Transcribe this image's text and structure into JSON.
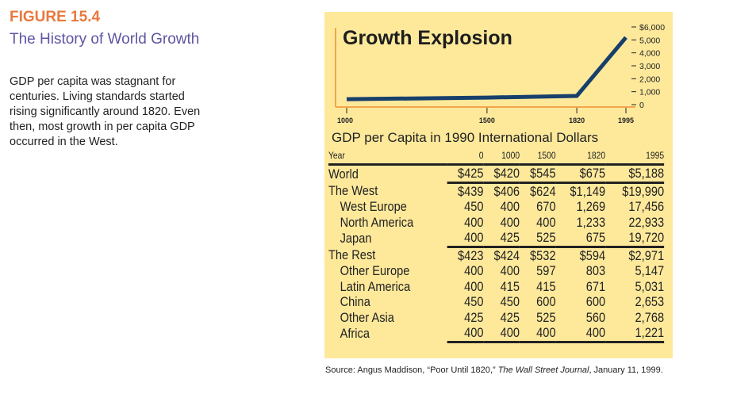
{
  "figure": {
    "label": "FIGURE 15.4",
    "title": "The History of World Growth",
    "caption": "GDP per capita was stagnant for centuries. Living standards started rising significantly around 1820. Even then, most growth in per capita GDP occurred in the West."
  },
  "chart_data": {
    "type": "line",
    "title": "Growth Explosion",
    "x": [
      1000,
      1500,
      1820,
      1995
    ],
    "values": [
      420,
      545,
      675,
      5188
    ],
    "xticks": [
      "1000",
      "1500",
      "1820",
      "1995"
    ],
    "yticks": [
      "0",
      "1,000",
      "2,000",
      "3,000",
      "4,000",
      "5,000",
      "$6,000"
    ],
    "ylim": [
      0,
      6000
    ],
    "grid": false,
    "line_color": "#173f6b",
    "axis_color": "#f3a54c"
  },
  "table": {
    "title": "GDP per Capita in 1990 International Dollars",
    "headers": [
      "Year",
      "0",
      "1000",
      "1500",
      "1820",
      "1995"
    ],
    "rows": [
      {
        "label": "World",
        "values": [
          "$425",
          "$420",
          "$545",
          "$675",
          "$5,188"
        ],
        "indent": false,
        "sep": true
      },
      {
        "label": "The West",
        "values": [
          "$439",
          "$406",
          "$624",
          "$1,149",
          "$19,990"
        ],
        "indent": false
      },
      {
        "label": "West Europe",
        "values": [
          "450",
          "400",
          "670",
          "1,269",
          "17,456"
        ],
        "indent": true
      },
      {
        "label": "North America",
        "values": [
          "400",
          "400",
          "400",
          "1,233",
          "22,933"
        ],
        "indent": true
      },
      {
        "label": "Japan",
        "values": [
          "400",
          "425",
          "525",
          "675",
          "19,720"
        ],
        "indent": true,
        "sep": true
      },
      {
        "label": "The Rest",
        "values": [
          "$423",
          "$424",
          "$532",
          "$594",
          "$2,971"
        ],
        "indent": false
      },
      {
        "label": "Other Europe",
        "values": [
          "400",
          "400",
          "597",
          "803",
          "5,147"
        ],
        "indent": true
      },
      {
        "label": "Latin America",
        "values": [
          "400",
          "415",
          "415",
          "671",
          "5,031"
        ],
        "indent": true
      },
      {
        "label": "China",
        "values": [
          "450",
          "450",
          "600",
          "600",
          "2,653"
        ],
        "indent": true
      },
      {
        "label": "Other Asia",
        "values": [
          "425",
          "425",
          "525",
          "560",
          "2,768"
        ],
        "indent": true
      },
      {
        "label": "Africa",
        "values": [
          "400",
          "400",
          "400",
          "400",
          "1,221"
        ],
        "indent": true,
        "sep": true
      }
    ]
  },
  "source": {
    "prefix": "Source: Angus Maddison, “Poor Until 1820,” ",
    "journal": "The Wall Street Journal",
    "suffix": ", January 11, 1999."
  }
}
